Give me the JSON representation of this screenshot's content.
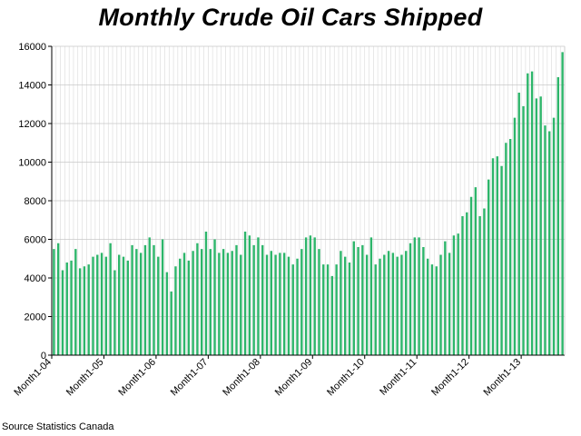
{
  "chart_data": {
    "type": "bar",
    "title": "Monthly Crude Oil Cars Shipped",
    "source": "Source Statistics Canada",
    "xlabel": "",
    "ylabel": "",
    "ylim": [
      0,
      16000
    ],
    "yticks": [
      0,
      2000,
      4000,
      6000,
      8000,
      10000,
      12000,
      14000,
      16000
    ],
    "grid": "vertical and horizontal, light gray",
    "bar_color": "#2db56a",
    "x_tick_labels": [
      {
        "index": 0,
        "label": "Month1-04"
      },
      {
        "index": 12,
        "label": "Month1-05"
      },
      {
        "index": 24,
        "label": "Month1-06"
      },
      {
        "index": 36,
        "label": "Month1-07"
      },
      {
        "index": 48,
        "label": "Month1-08"
      },
      {
        "index": 60,
        "label": "Month1-09"
      },
      {
        "index": 72,
        "label": "Month1-10"
      },
      {
        "index": 84,
        "label": "Month1-11"
      },
      {
        "index": 96,
        "label": "Month1-12"
      },
      {
        "index": 108,
        "label": "Month1-13"
      }
    ],
    "values": [
      5500,
      5800,
      4400,
      4800,
      4900,
      5500,
      4500,
      4600,
      4700,
      5100,
      5200,
      5300,
      5100,
      5800,
      4400,
      5200,
      5100,
      4900,
      5700,
      5500,
      5300,
      5700,
      6100,
      5700,
      5100,
      6000,
      4300,
      3300,
      4600,
      5000,
      5300,
      4900,
      5400,
      5800,
      5500,
      6400,
      5500,
      6000,
      5300,
      5500,
      5300,
      5400,
      5700,
      5200,
      6400,
      6200,
      5700,
      6100,
      5700,
      5200,
      5400,
      5200,
      5300,
      5300,
      5100,
      4700,
      5000,
      5500,
      6100,
      6200,
      6100,
      5500,
      4700,
      4700,
      4100,
      4700,
      5400,
      5100,
      4800,
      5900,
      5600,
      5700,
      5200,
      6100,
      4700,
      5000,
      5200,
      5400,
      5300,
      5100,
      5200,
      5400,
      5800,
      6100,
      6100,
      5600,
      5000,
      4700,
      4600,
      5200,
      5900,
      5300,
      6200,
      6300,
      7200,
      7400,
      8200,
      8700,
      7200,
      7600,
      9100,
      10200,
      10300,
      9800,
      11000,
      11200,
      12300,
      13600,
      12900,
      14600,
      14700,
      13300,
      13400,
      11900,
      11600,
      12300,
      14400,
      15700
    ]
  }
}
